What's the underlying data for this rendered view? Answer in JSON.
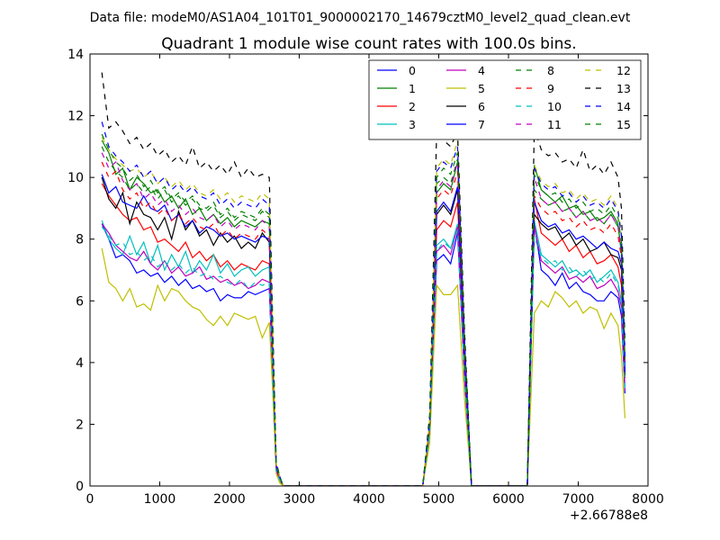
{
  "chart_data": {
    "type": "line",
    "suptitle": "Data file: modeM0/AS1A04_101T01_9000002170_14679cztM0_level2_quad_clean.evt",
    "title": "Quadrant 1 module wise count rates with 100.0s bins.",
    "xlabel": "",
    "ylabel": "",
    "xlim": [
      0,
      8000
    ],
    "ylim": [
      0,
      14
    ],
    "x_ticks": [
      "0",
      "1000",
      "2000",
      "3000",
      "4000",
      "5000",
      "6000",
      "7000",
      "8000"
    ],
    "y_ticks": [
      "0",
      "2",
      "4",
      "6",
      "8",
      "10",
      "12",
      "14"
    ],
    "x_offset_label": "+2.66788e8",
    "grid": false,
    "legend_position": "top-right",
    "legend_columns": 4,
    "x": [
      170,
      270,
      370,
      470,
      570,
      670,
      770,
      870,
      970,
      1070,
      1170,
      1270,
      1370,
      1470,
      1570,
      1670,
      1770,
      1870,
      1970,
      2070,
      2170,
      2270,
      2370,
      2470,
      2570,
      2620,
      2670,
      2720,
      2770,
      2870,
      3870,
      4770,
      4870,
      4970,
      5070,
      5170,
      5270,
      5370,
      5470,
      5570,
      6270,
      6370,
      6470,
      6570,
      6670,
      6770,
      6870,
      6970,
      7070,
      7170,
      7270,
      7370,
      7470,
      7570,
      7620,
      7670
    ],
    "series": [
      {
        "name": "0",
        "color": "#0000ff",
        "dash": "solid",
        "values": [
          8.5,
          8.0,
          7.4,
          7.5,
          7.3,
          6.9,
          7.0,
          6.8,
          6.9,
          6.6,
          6.8,
          6.5,
          6.7,
          6.4,
          6.5,
          6.3,
          6.4,
          6.0,
          6.2,
          6.1,
          6.1,
          6.3,
          6.2,
          6.3,
          6.4,
          3.5,
          0.6,
          0.2,
          0.0,
          0.0,
          0.0,
          0.0,
          1.8,
          7.3,
          7.5,
          7.2,
          8.2,
          3.5,
          0.0,
          0.0,
          0.0,
          8.5,
          7.0,
          6.8,
          6.5,
          6.9,
          6.4,
          6.6,
          6.3,
          6.2,
          6.0,
          6.0,
          6.3,
          6.1,
          5.5,
          3.0
        ]
      },
      {
        "name": "1",
        "color": "#008000",
        "dash": "solid",
        "values": [
          11.2,
          10.8,
          10.1,
          10.3,
          9.6,
          10.0,
          9.8,
          9.5,
          9.6,
          9.2,
          9.4,
          9.0,
          9.3,
          8.8,
          9.0,
          8.6,
          8.8,
          8.5,
          8.7,
          8.4,
          8.6,
          8.5,
          8.4,
          8.6,
          8.5,
          4.5,
          0.7,
          0.3,
          0.0,
          0.0,
          0.0,
          0.0,
          2.0,
          9.5,
          9.8,
          9.6,
          10.5,
          4.5,
          0.0,
          0.0,
          0.0,
          10.4,
          9.6,
          9.4,
          9.2,
          9.4,
          9.0,
          9.1,
          8.8,
          8.9,
          8.6,
          8.7,
          8.9,
          8.5,
          7.5,
          4.0
        ]
      },
      {
        "name": "2",
        "color": "#ff0000",
        "dash": "solid",
        "values": [
          9.8,
          9.4,
          9.1,
          8.8,
          8.6,
          8.7,
          8.3,
          8.4,
          7.9,
          8.0,
          7.8,
          7.6,
          7.9,
          7.4,
          7.6,
          7.3,
          7.5,
          7.1,
          7.3,
          7.0,
          7.2,
          7.1,
          7.0,
          7.3,
          7.2,
          3.9,
          0.6,
          0.2,
          0.0,
          0.0,
          0.0,
          0.0,
          1.9,
          8.3,
          8.6,
          8.4,
          9.2,
          4.0,
          0.0,
          0.0,
          0.0,
          9.3,
          8.2,
          8.0,
          7.8,
          8.0,
          7.6,
          7.8,
          7.4,
          7.6,
          7.2,
          7.3,
          7.5,
          7.1,
          6.5,
          3.5
        ]
      },
      {
        "name": "3",
        "color": "#00bfbf",
        "dash": "solid",
        "values": [
          8.6,
          8.0,
          7.7,
          7.5,
          8.1,
          7.5,
          7.9,
          7.2,
          7.8,
          7.0,
          7.5,
          7.1,
          7.6,
          6.9,
          7.3,
          7.0,
          7.5,
          6.9,
          7.2,
          6.8,
          7.0,
          7.1,
          6.8,
          7.0,
          7.1,
          3.6,
          0.5,
          0.2,
          0.0,
          0.0,
          0.0,
          0.0,
          1.7,
          7.8,
          8.0,
          7.7,
          8.5,
          3.6,
          0.0,
          0.0,
          0.0,
          8.6,
          7.5,
          7.3,
          7.1,
          7.3,
          6.9,
          7.0,
          6.8,
          7.0,
          6.6,
          6.8,
          7.0,
          6.6,
          6.0,
          3.2
        ]
      },
      {
        "name": "4",
        "color": "#bf00bf",
        "dash": "solid",
        "values": [
          8.5,
          8.2,
          7.8,
          7.6,
          7.4,
          7.3,
          7.6,
          7.2,
          7.0,
          7.3,
          6.9,
          7.1,
          6.8,
          6.9,
          7.1,
          6.7,
          6.8,
          6.6,
          6.7,
          6.5,
          6.6,
          6.4,
          6.5,
          6.7,
          6.6,
          3.4,
          0.5,
          0.2,
          0.0,
          0.0,
          0.0,
          0.0,
          1.8,
          7.6,
          7.8,
          7.5,
          8.4,
          3.5,
          0.0,
          0.0,
          0.0,
          8.4,
          7.3,
          7.1,
          6.9,
          7.1,
          6.7,
          6.8,
          6.6,
          6.8,
          6.4,
          6.5,
          6.7,
          6.3,
          5.8,
          3.1
        ]
      },
      {
        "name": "5",
        "color": "#bfbf00",
        "dash": "solid",
        "values": [
          7.7,
          6.6,
          6.4,
          6.0,
          6.4,
          5.8,
          5.9,
          5.7,
          6.5,
          6.0,
          6.4,
          6.3,
          6.0,
          5.8,
          5.7,
          5.4,
          5.2,
          5.5,
          5.2,
          5.6,
          5.5,
          5.4,
          5.5,
          4.8,
          5.3,
          3.0,
          0.4,
          0.1,
          0.0,
          0.0,
          0.0,
          0.0,
          1.4,
          6.5,
          6.2,
          6.2,
          6.5,
          2.8,
          0.0,
          0.0,
          0.0,
          5.6,
          6.0,
          5.8,
          6.3,
          6.1,
          5.8,
          6.0,
          5.6,
          5.8,
          5.7,
          5.1,
          5.6,
          5.2,
          4.2,
          2.2
        ]
      },
      {
        "name": "6",
        "color": "#000000",
        "dash": "solid",
        "values": [
          10.0,
          9.3,
          9.0,
          9.5,
          8.5,
          9.2,
          8.8,
          8.7,
          8.3,
          8.7,
          8.0,
          8.9,
          8.3,
          8.6,
          8.1,
          8.3,
          7.8,
          8.2,
          7.9,
          8.1,
          7.7,
          7.9,
          7.7,
          8.2,
          7.9,
          4.1,
          0.6,
          0.3,
          0.0,
          0.0,
          0.0,
          0.0,
          1.9,
          8.8,
          9.1,
          8.8,
          9.6,
          4.1,
          0.0,
          0.0,
          0.0,
          8.8,
          8.5,
          8.3,
          8.4,
          8.0,
          8.2,
          7.8,
          8.0,
          7.6,
          7.7,
          7.9,
          7.5,
          7.4,
          7.0,
          3.6
        ]
      },
      {
        "name": "7",
        "color": "#0000ff",
        "dash": "solid",
        "values": [
          10.1,
          9.5,
          9.7,
          9.2,
          9.1,
          9.0,
          9.4,
          9.0,
          8.9,
          9.1,
          8.6,
          8.8,
          8.4,
          8.6,
          8.2,
          8.4,
          8.3,
          8.1,
          8.2,
          8.0,
          8.1,
          8.0,
          7.9,
          8.1,
          8.0,
          4.2,
          0.6,
          0.3,
          0.0,
          0.0,
          0.0,
          0.0,
          1.9,
          8.9,
          9.2,
          8.9,
          9.7,
          4.2,
          0.0,
          0.0,
          0.0,
          9.2,
          8.6,
          8.4,
          8.5,
          8.2,
          8.3,
          8.0,
          8.1,
          7.9,
          7.7,
          7.9,
          7.7,
          7.6,
          7.2,
          3.7
        ]
      },
      {
        "name": "8",
        "color": "#008000",
        "dash": "dashed",
        "values": [
          11.0,
          10.5,
          10.2,
          10.0,
          9.6,
          9.8,
          9.5,
          9.7,
          9.3,
          9.6,
          9.2,
          9.4,
          9.1,
          9.3,
          9.0,
          8.9,
          9.1,
          8.7,
          8.9,
          8.6,
          8.8,
          8.7,
          8.6,
          8.9,
          8.7,
          4.6,
          0.7,
          0.3,
          0.0,
          0.0,
          0.0,
          0.0,
          2.0,
          9.8,
          10.0,
          9.8,
          10.6,
          4.6,
          0.0,
          0.0,
          0.0,
          9.6,
          9.3,
          9.1,
          9.2,
          8.9,
          9.0,
          8.7,
          8.9,
          8.6,
          8.7,
          8.5,
          8.8,
          8.4,
          7.7,
          4.1
        ]
      },
      {
        "name": "9",
        "color": "#ff0000",
        "dash": "dashed",
        "values": [
          10.5,
          10.0,
          10.2,
          9.6,
          9.3,
          9.5,
          9.0,
          9.2,
          8.8,
          9.0,
          8.6,
          8.8,
          8.5,
          8.7,
          8.4,
          8.3,
          8.5,
          8.1,
          8.3,
          8.0,
          8.2,
          8.1,
          8.0,
          8.3,
          8.1,
          4.3,
          0.6,
          0.3,
          0.0,
          0.0,
          0.0,
          0.0,
          1.9,
          9.3,
          9.6,
          9.4,
          10.2,
          4.4,
          0.0,
          0.0,
          0.0,
          9.4,
          9.0,
          8.8,
          8.9,
          8.6,
          8.7,
          8.4,
          8.6,
          8.3,
          8.4,
          8.2,
          8.5,
          8.1,
          7.4,
          3.9
        ]
      },
      {
        "name": "10",
        "color": "#00bfbf",
        "dash": "dashed",
        "values": [
          8.4,
          8.1,
          7.8,
          7.9,
          7.5,
          7.6,
          7.3,
          7.5,
          7.1,
          7.3,
          7.0,
          7.2,
          6.9,
          7.1,
          6.8,
          6.9,
          6.7,
          6.8,
          6.6,
          6.5,
          6.7,
          6.4,
          6.6,
          6.5,
          6.6,
          3.4,
          0.5,
          0.2,
          0.0,
          0.0,
          0.0,
          0.0,
          1.7,
          7.6,
          7.9,
          7.7,
          8.3,
          3.5,
          0.0,
          0.0,
          0.0,
          8.1,
          7.4,
          7.2,
          7.3,
          7.0,
          7.1,
          6.8,
          7.0,
          6.7,
          6.8,
          6.6,
          6.9,
          6.5,
          6.0,
          3.1
        ]
      },
      {
        "name": "11",
        "color": "#bf00bf",
        "dash": "dashed",
        "values": [
          10.8,
          10.3,
          10.5,
          9.9,
          9.6,
          9.8,
          9.3,
          9.5,
          9.1,
          9.3,
          8.9,
          9.1,
          8.8,
          9.0,
          8.7,
          8.6,
          8.8,
          8.4,
          8.6,
          8.3,
          8.5,
          8.4,
          8.3,
          8.6,
          8.4,
          4.4,
          0.6,
          0.3,
          0.0,
          0.0,
          0.0,
          0.0,
          2.0,
          9.6,
          9.9,
          9.7,
          10.5,
          4.5,
          0.0,
          0.0,
          0.0,
          10.0,
          9.3,
          9.1,
          9.2,
          8.9,
          9.0,
          8.7,
          8.9,
          8.6,
          8.7,
          8.5,
          8.8,
          8.4,
          7.6,
          4.0
        ]
      },
      {
        "name": "12",
        "color": "#bfbf00",
        "dash": "dashed",
        "values": [
          11.3,
          10.9,
          10.6,
          10.4,
          10.2,
          10.3,
          10.0,
          10.2,
          9.8,
          10.0,
          9.7,
          9.9,
          9.6,
          9.8,
          9.5,
          9.4,
          9.6,
          9.3,
          9.5,
          9.2,
          9.4,
          9.3,
          9.2,
          9.5,
          9.3,
          4.9,
          0.7,
          0.3,
          0.0,
          0.0,
          0.0,
          0.0,
          2.1,
          10.3,
          10.6,
          10.4,
          11.2,
          4.8,
          0.0,
          0.0,
          0.0,
          10.4,
          9.9,
          9.7,
          9.8,
          9.5,
          9.6,
          9.3,
          9.5,
          9.2,
          9.3,
          9.1,
          9.4,
          9.0,
          8.2,
          4.3
        ]
      },
      {
        "name": "13",
        "color": "#000000",
        "dash": "dashed",
        "values": [
          13.4,
          11.6,
          11.8,
          11.5,
          11.1,
          11.3,
          10.9,
          11.1,
          10.7,
          10.9,
          10.5,
          10.7,
          10.4,
          11.0,
          10.3,
          10.5,
          10.2,
          10.4,
          10.1,
          10.5,
          10.0,
          10.3,
          10.0,
          10.1,
          10.0,
          5.2,
          0.8,
          0.3,
          0.0,
          0.0,
          0.0,
          0.0,
          2.3,
          11.5,
          11.2,
          11.0,
          11.5,
          5.0,
          0.0,
          0.0,
          0.0,
          11.6,
          10.9,
          10.7,
          10.8,
          10.5,
          10.6,
          10.3,
          10.9,
          10.2,
          10.4,
          10.1,
          10.5,
          10.0,
          9.0,
          4.6
        ]
      },
      {
        "name": "14",
        "color": "#0000ff",
        "dash": "dashed",
        "values": [
          11.8,
          11.0,
          10.7,
          10.5,
          10.2,
          10.4,
          10.0,
          10.2,
          9.8,
          10.0,
          9.6,
          9.8,
          9.5,
          9.7,
          9.4,
          9.3,
          9.5,
          9.1,
          9.3,
          9.0,
          9.2,
          9.1,
          9.0,
          9.3,
          9.1,
          4.8,
          0.7,
          0.3,
          0.0,
          0.0,
          0.0,
          0.0,
          2.1,
          10.2,
          10.5,
          10.3,
          11.0,
          4.7,
          0.0,
          0.0,
          0.0,
          10.3,
          9.8,
          9.6,
          9.7,
          9.4,
          9.5,
          9.2,
          9.4,
          9.1,
          9.2,
          9.0,
          9.3,
          8.9,
          8.1,
          4.2
        ]
      },
      {
        "name": "15",
        "color": "#008000",
        "dash": "dashed",
        "values": [
          11.4,
          10.9,
          10.5,
          10.3,
          9.9,
          10.1,
          9.7,
          9.9,
          9.5,
          9.7,
          9.3,
          9.5,
          9.2,
          9.4,
          9.1,
          9.0,
          9.2,
          8.8,
          9.0,
          8.7,
          8.9,
          8.8,
          8.7,
          9.0,
          8.8,
          4.7,
          0.7,
          0.3,
          0.0,
          0.0,
          0.0,
          0.0,
          2.0,
          10.0,
          10.3,
          10.1,
          10.8,
          4.6,
          0.0,
          0.0,
          0.0,
          10.1,
          9.6,
          9.4,
          9.5,
          9.2,
          9.3,
          9.0,
          9.2,
          8.9,
          9.0,
          8.8,
          9.1,
          8.7,
          7.9,
          4.1
        ]
      }
    ]
  }
}
